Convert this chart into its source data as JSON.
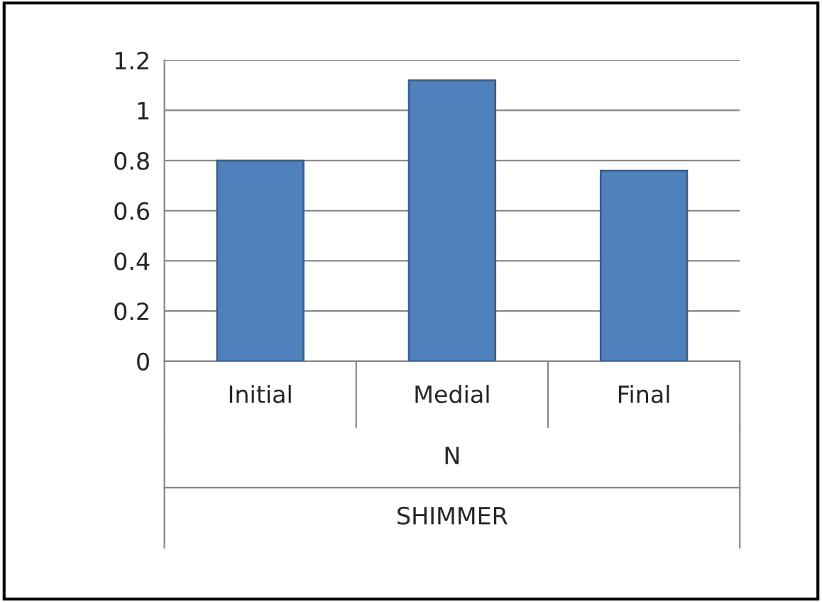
{
  "chart_data": {
    "type": "bar",
    "categories": [
      "Initial",
      "Medial",
      "Final"
    ],
    "values": [
      0.8,
      1.12,
      0.76
    ],
    "color": "#4f81bd",
    "ylim": [
      0,
      1.2
    ],
    "yticks": [
      0,
      0.2,
      0.4,
      0.6,
      0.8,
      1,
      1.2
    ],
    "grid": "y",
    "xlabel": "N",
    "annotations": [
      "SHIMMER"
    ]
  }
}
